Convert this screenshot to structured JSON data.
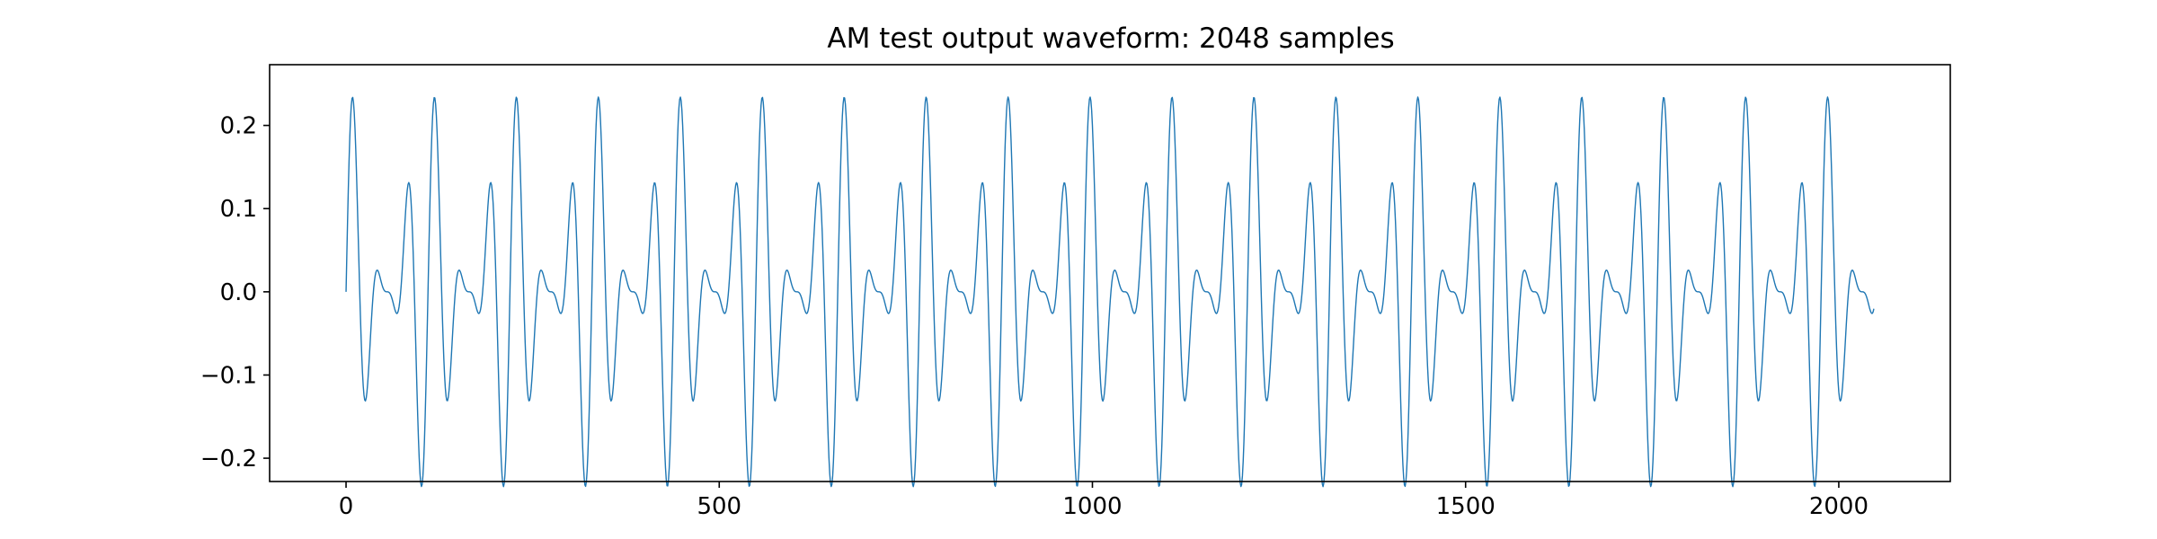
{
  "chart_data": {
    "type": "line",
    "title": "AM test output waveform: 2048 samples",
    "xlabel": "",
    "ylabel": "",
    "xlim": [
      -102.4,
      2149.4
    ],
    "ylim": [
      -0.228,
      0.273
    ],
    "xticks": [
      0,
      500,
      1000,
      1500,
      2000
    ],
    "xtick_labels": [
      "0",
      "500",
      "1000",
      "1500",
      "2000"
    ],
    "yticks": [
      -0.2,
      -0.1,
      0.0,
      0.1,
      0.2
    ],
    "ytick_labels": [
      "−0.2",
      "−0.1",
      "0.0",
      "0.1",
      "0.2"
    ],
    "grid": false,
    "legend": "none",
    "line_color": "#1f77b4",
    "series": [
      {
        "n_samples": 2048,
        "signal": {
          "carrier_period_samples": 36.6,
          "modulation_period_samples": 109.8,
          "carrier_amplitude": 0.125,
          "modulation_depth": 1.0,
          "carrier_phase": "sine",
          "modulation_phase": "cosine"
        }
      }
    ]
  }
}
